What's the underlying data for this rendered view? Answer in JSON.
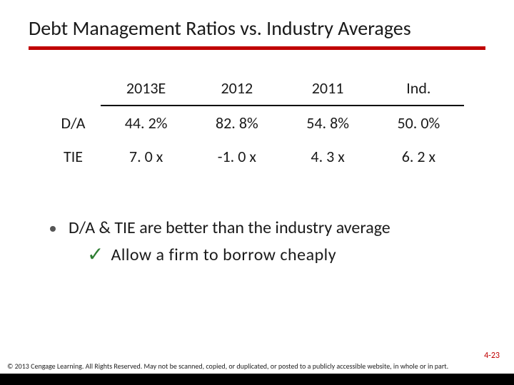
{
  "colors": {
    "accent": "#c00000",
    "bullet": "#555555",
    "check": "#2e7d32",
    "pagenum": "#c00000",
    "bottombar": "#000000"
  },
  "title": "Debt Management Ratios vs. Industry Averages",
  "table": {
    "headers": [
      "",
      "2013E",
      "2012",
      "2011",
      "Ind."
    ],
    "rows": [
      {
        "label": "D/A",
        "cells": [
          "44. 2%",
          "82. 8%",
          "54. 8%",
          "50. 0%"
        ]
      },
      {
        "label": "TIE",
        "cells": [
          "7. 0 x",
          "-1. 0 x",
          "4. 3 x",
          "6. 2 x"
        ]
      }
    ]
  },
  "bullet": {
    "text": "D/A & TIE are better than the industry average",
    "sub": "Allow a firm to borrow cheaply"
  },
  "pageNumber": "4-23",
  "copyright": "© 2013 Cengage Learning. All Rights Reserved. May not be scanned, copied, or duplicated, or posted to a publicly accessible website, in whole or in part."
}
